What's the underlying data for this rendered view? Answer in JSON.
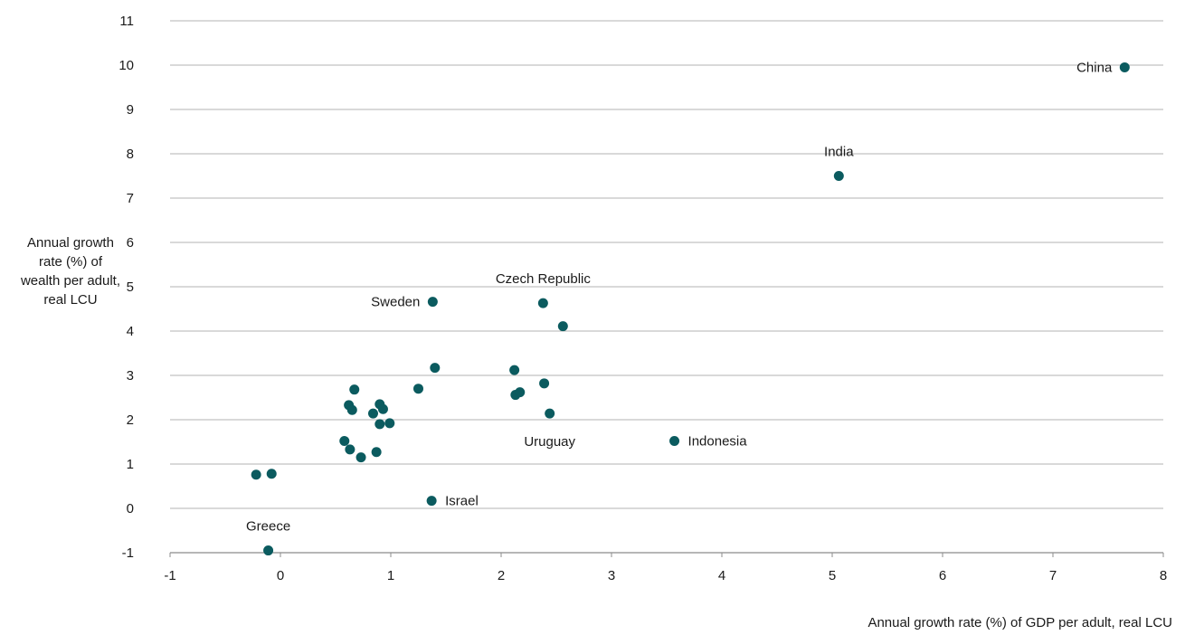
{
  "chart_data": {
    "type": "scatter",
    "title": "",
    "xlabel": "Annual growth rate (%) of GDP per adult, real LCU",
    "ylabel_lines": [
      "Annual growth",
      "rate (%) of",
      "wealth per adult,",
      "real LCU"
    ],
    "xlim": [
      -1,
      8
    ],
    "ylim": [
      -1,
      11
    ],
    "xticks": [
      -1,
      0,
      1,
      2,
      3,
      4,
      5,
      6,
      7,
      8
    ],
    "yticks": [
      -1,
      0,
      1,
      2,
      3,
      4,
      5,
      6,
      7,
      8,
      9,
      10,
      11
    ],
    "grid": "horizontal",
    "marker_color": "#0b5b5f",
    "gridline_color": "#b3b3b3",
    "points": [
      {
        "x": 7.65,
        "y": 9.95,
        "label": "China",
        "label_pos": "left"
      },
      {
        "x": 5.06,
        "y": 7.5,
        "label": "India",
        "label_pos": "above"
      },
      {
        "x": 1.38,
        "y": 4.66,
        "label": "Sweden",
        "label_pos": "left"
      },
      {
        "x": 2.38,
        "y": 4.63,
        "label": "Czech Republic",
        "label_pos": "above"
      },
      {
        "x": 2.56,
        "y": 4.11
      },
      {
        "x": 1.4,
        "y": 3.17
      },
      {
        "x": 1.25,
        "y": 2.7
      },
      {
        "x": 2.12,
        "y": 3.12
      },
      {
        "x": 2.39,
        "y": 2.82
      },
      {
        "x": 2.13,
        "y": 2.56
      },
      {
        "x": 2.17,
        "y": 2.62
      },
      {
        "x": 2.44,
        "y": 2.14,
        "label": "Uruguay",
        "label_pos": "below"
      },
      {
        "x": 3.57,
        "y": 1.52,
        "label": "Indonesia",
        "label_pos": "right"
      },
      {
        "x": 0.67,
        "y": 2.68
      },
      {
        "x": 0.62,
        "y": 2.33
      },
      {
        "x": 0.65,
        "y": 2.22
      },
      {
        "x": 0.9,
        "y": 2.35
      },
      {
        "x": 0.93,
        "y": 2.24
      },
      {
        "x": 0.84,
        "y": 2.14
      },
      {
        "x": 0.9,
        "y": 1.9
      },
      {
        "x": 0.99,
        "y": 1.92
      },
      {
        "x": 0.58,
        "y": 1.52
      },
      {
        "x": 0.63,
        "y": 1.33
      },
      {
        "x": 0.73,
        "y": 1.15
      },
      {
        "x": 0.87,
        "y": 1.27
      },
      {
        "x": 1.37,
        "y": 0.17,
        "label": "Israel",
        "label_pos": "right"
      },
      {
        "x": -0.22,
        "y": 0.76
      },
      {
        "x": -0.08,
        "y": 0.78
      },
      {
        "x": -0.11,
        "y": -0.95,
        "label": "Greece",
        "label_pos": "above"
      }
    ]
  }
}
